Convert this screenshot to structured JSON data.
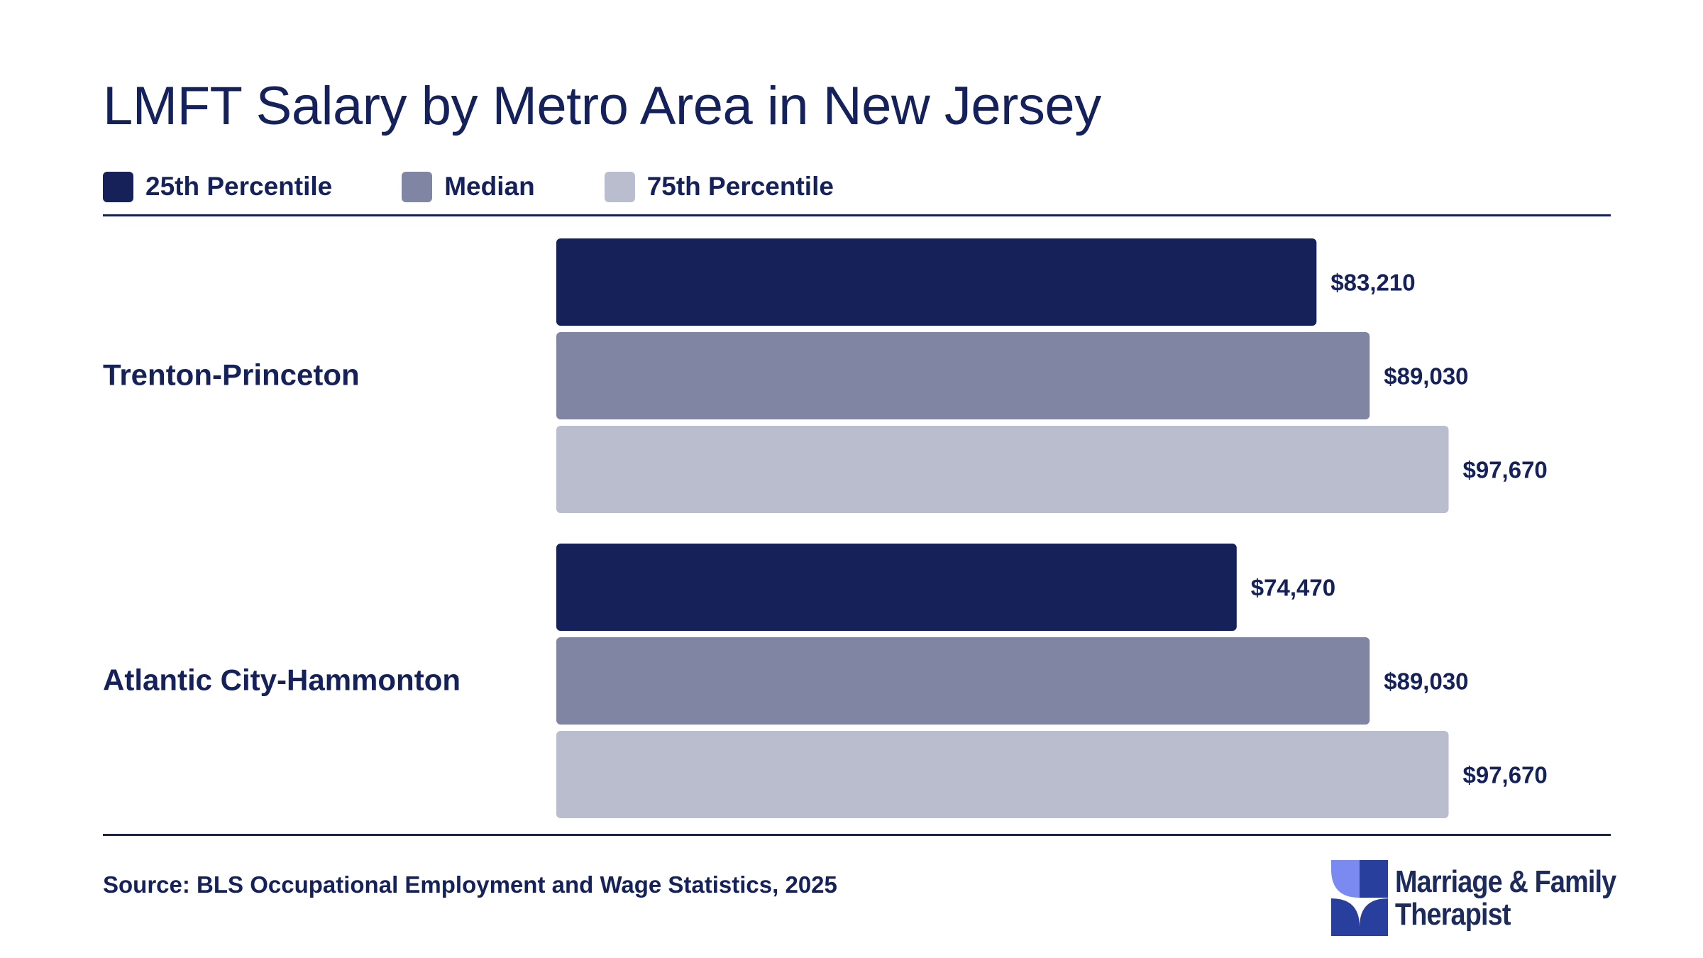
{
  "chart_data": {
    "type": "bar",
    "orientation": "horizontal",
    "title": "LMFT Salary by Metro Area in New Jersey",
    "categories": [
      "Trenton-Princeton",
      "Atlantic City-Hammonton"
    ],
    "series": [
      {
        "name": "25th Percentile",
        "color": "#152158",
        "values": [
          83210,
          74470
        ],
        "labels": [
          "$83,210",
          "$74,470"
        ]
      },
      {
        "name": "Median",
        "color": "#7f85a2",
        "values": [
          89030,
          89030
        ],
        "labels": [
          "$89,030",
          "$89,030"
        ]
      },
      {
        "name": "75th Percentile",
        "color": "#b9bdcd",
        "values": [
          97670,
          97670
        ],
        "labels": [
          "$97,670",
          "$97,670"
        ]
      }
    ],
    "xlim": [
      0,
      100000
    ],
    "legend_position": "top-left",
    "grid": false
  },
  "source": "Source: BLS Occupational Employment and Wage Statistics, 2025",
  "logo": {
    "line1": "Marriage & Family",
    "line2": "Therapist",
    "colors": {
      "light": "#7a8af0",
      "dark": "#283f9e"
    }
  }
}
